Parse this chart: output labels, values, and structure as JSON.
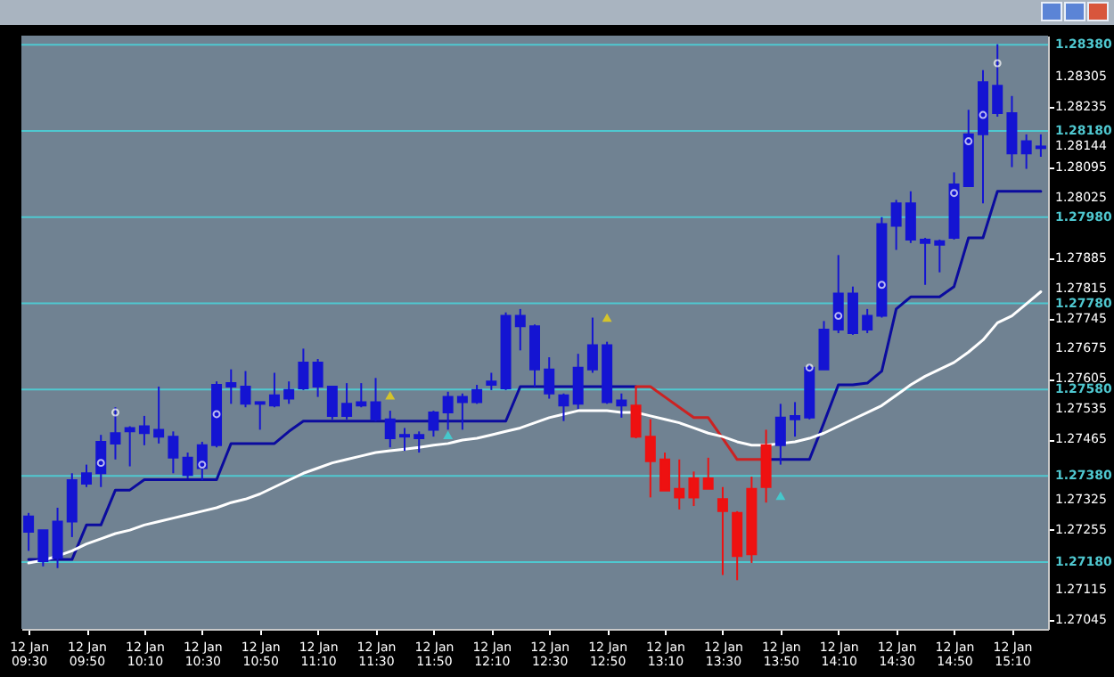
{
  "chart_data": {
    "type": "candlestick",
    "categories": [
      "12 Jan 09:30",
      null,
      null,
      null,
      "12 Jan 09:50",
      null,
      null,
      null,
      "12 Jan 10:10",
      null,
      null,
      null,
      "12 Jan 10:30",
      null,
      null,
      null,
      "12 Jan 10:50",
      null,
      null,
      null,
      "12 Jan 11:10",
      null,
      null,
      null,
      "12 Jan 11:30",
      null,
      null,
      null,
      "12 Jan 11:50",
      null,
      null,
      null,
      "12 Jan 12:10",
      null,
      null,
      null,
      "12 Jan 12:30",
      null,
      null,
      null,
      "12 Jan 12:50",
      null,
      null,
      null,
      "12 Jan 13:10",
      null,
      null,
      null,
      "12 Jan 13:30",
      null,
      null,
      null,
      "12 Jan 13:50",
      null,
      null,
      null,
      "12 Jan 14:10",
      null,
      null,
      null,
      "12 Jan 14:30",
      null,
      null,
      null,
      "12 Jan 14:50",
      null,
      null,
      null,
      "12 Jan 15:10",
      null,
      null
    ],
    "ohlc": [
      [
        1.2725,
        1.27294,
        1.27206,
        1.27286
      ],
      [
        1.27182,
        1.27254,
        1.2717,
        1.27254
      ],
      [
        1.2719,
        1.27306,
        1.27166,
        1.27274
      ],
      [
        1.27274,
        1.27386,
        1.27238,
        1.2737
      ],
      [
        1.27362,
        1.27406,
        1.27354,
        1.27386
      ],
      [
        1.27386,
        1.27475,
        1.27354,
        1.27459
      ],
      [
        1.27455,
        1.27539,
        1.27418,
        1.27479
      ],
      [
        1.27483,
        1.27495,
        1.27402,
        1.27491
      ],
      [
        1.27479,
        1.27519,
        1.27451,
        1.27495
      ],
      [
        1.27471,
        1.27587,
        1.27455,
        1.27487
      ],
      [
        1.27422,
        1.27483,
        1.27386,
        1.27471
      ],
      [
        1.27382,
        1.27434,
        1.27374,
        1.27422
      ],
      [
        1.27398,
        1.27459,
        1.2737,
        1.27451
      ],
      [
        1.27451,
        1.27599,
        1.27446,
        1.27591
      ],
      [
        1.27587,
        1.27627,
        1.27547,
        1.27595
      ],
      [
        1.27547,
        1.27623,
        1.27539,
        1.27587
      ],
      [
        1.27547,
        1.27551,
        1.27487,
        1.27551
      ],
      [
        1.27543,
        1.27619,
        1.27539,
        1.27567
      ],
      [
        1.27559,
        1.27599,
        1.27547,
        1.27579
      ],
      [
        1.27583,
        1.27675,
        1.27579,
        1.27643
      ],
      [
        1.27587,
        1.27651,
        1.27563,
        1.27643
      ],
      [
        1.27519,
        1.27587,
        1.27511,
        1.27587
      ],
      [
        1.27519,
        1.27595,
        1.27511,
        1.27547
      ],
      [
        1.27543,
        1.27595,
        1.27539,
        1.27551
      ],
      [
        1.27511,
        1.27607,
        1.27507,
        1.27551
      ],
      [
        1.27467,
        1.27531,
        1.27446,
        1.27511
      ],
      [
        1.27471,
        1.27491,
        1.27438,
        1.27475
      ],
      [
        1.27467,
        1.27483,
        1.27434,
        1.27475
      ],
      [
        1.27487,
        1.27531,
        1.27471,
        1.27527
      ],
      [
        1.27527,
        1.27575,
        1.27487,
        1.27563
      ],
      [
        1.27551,
        1.27571,
        1.27487,
        1.27563
      ],
      [
        1.27551,
        1.27591,
        1.27547,
        1.27579
      ],
      [
        1.27591,
        1.27619,
        1.27579,
        1.27599
      ],
      [
        1.27583,
        1.27759,
        1.27579,
        1.27751
      ],
      [
        1.27727,
        1.27767,
        1.27671,
        1.27751
      ],
      [
        1.27627,
        1.27731,
        1.27587,
        1.27727
      ],
      [
        1.27571,
        1.27655,
        1.27559,
        1.27627
      ],
      [
        1.27543,
        1.27571,
        1.27507,
        1.27567
      ],
      [
        1.27547,
        1.27663,
        1.27535,
        1.27631
      ],
      [
        1.27627,
        1.27747,
        1.27619,
        1.27683
      ],
      [
        1.27551,
        1.27691,
        1.27547,
        1.27683
      ],
      [
        1.27543,
        1.27571,
        1.27515,
        1.27555
      ],
      [
        1.27543,
        1.27587,
        1.27467,
        1.27471
      ],
      [
        1.27471,
        1.27511,
        1.2733,
        1.27414
      ],
      [
        1.27418,
        1.27434,
        1.27346,
        1.27346
      ],
      [
        1.2735,
        1.27418,
        1.27302,
        1.2733
      ],
      [
        1.27374,
        1.2739,
        1.2731,
        1.2733
      ],
      [
        1.27374,
        1.27422,
        1.2735,
        1.2735
      ],
      [
        1.27326,
        1.27354,
        1.2715,
        1.27298
      ],
      [
        1.27294,
        1.27298,
        1.27138,
        1.27194
      ],
      [
        1.2735,
        1.27378,
        1.27178,
        1.27198
      ],
      [
        1.27451,
        1.27487,
        1.27318,
        1.27354
      ],
      [
        1.27451,
        1.27547,
        1.27406,
        1.27515
      ],
      [
        1.27511,
        1.27551,
        1.27471,
        1.27519
      ],
      [
        1.27515,
        1.27639,
        1.27511,
        1.27631
      ],
      [
        1.27627,
        1.27739,
        1.27627,
        1.27719
      ],
      [
        1.27719,
        1.27892,
        1.27711,
        1.27803
      ],
      [
        1.27711,
        1.27819,
        1.27707,
        1.27803
      ],
      [
        1.27719,
        1.27767,
        1.27711,
        1.27751
      ],
      [
        1.27751,
        1.2798,
        1.27747,
        1.27964
      ],
      [
        1.2796,
        1.2802,
        1.27904,
        1.28012
      ],
      [
        1.27928,
        1.2804,
        1.2792,
        1.28012
      ],
      [
        1.2792,
        1.27932,
        1.27823,
        1.27928
      ],
      [
        1.27916,
        1.27928,
        1.27852,
        1.27924
      ],
      [
        1.27932,
        1.28084,
        1.27928,
        1.28056
      ],
      [
        1.28052,
        1.28229,
        1.28052,
        1.28172
      ],
      [
        1.28172,
        1.28321,
        1.28012,
        1.28293
      ],
      [
        1.28221,
        1.28381,
        1.28213,
        1.28285
      ],
      [
        1.28128,
        1.28261,
        1.28096,
        1.28221
      ],
      [
        1.28128,
        1.28172,
        1.28092,
        1.28156
      ],
      [
        1.2814,
        1.28172,
        1.2812,
        1.28144
      ]
    ],
    "colors": [
      "#1414d2",
      "#1414d2",
      "#1414d2",
      "#1414d2",
      "#1414d2",
      "#1414d2",
      "#1414d2",
      "#1414d2",
      "#1414d2",
      "#1414d2",
      "#1414d2",
      "#1414d2",
      "#1414d2",
      "#1414d2",
      "#1414d2",
      "#1414d2",
      "#1414d2",
      "#1414d2",
      "#1414d2",
      "#1414d2",
      "#1414d2",
      "#1414d2",
      "#1414d2",
      "#1414d2",
      "#1414d2",
      "#1414d2",
      "#1414d2",
      "#1414d2",
      "#1414d2",
      "#1414d2",
      "#1414d2",
      "#1414d2",
      "#1414d2",
      "#1414d2",
      "#1414d2",
      "#1414d2",
      "#1414d2",
      "#1414d2",
      "#1414d2",
      "#1414d2",
      "#1414d2",
      "#1414d2",
      "#ee1111",
      "#ee1111",
      "#ee1111",
      "#ee1111",
      "#ee1111",
      "#ee1111",
      "#ee1111",
      "#ee1111",
      "#ee1111",
      "#ee1111",
      "#1414d2",
      "#1414d2",
      "#1414d2",
      "#1414d2",
      "#1414d2",
      "#1414d2",
      "#1414d2",
      "#1414d2",
      "#1414d2",
      "#1414d2",
      "#1414d2",
      "#1414d2",
      "#1414d2",
      "#1414d2",
      "#1414d2",
      "#1414d2",
      "#1414d2",
      "#1414d2",
      "#1414d2"
    ],
    "series": [
      {
        "type": "line",
        "color": "#0b0b9e",
        "values": [
          1.27186,
          1.27186,
          1.27186,
          1.27186,
          1.27266,
          1.27266,
          1.27347,
          1.27347,
          1.27371,
          1.27371,
          1.27371,
          1.27371,
          1.27371,
          1.27371,
          1.27455,
          1.27455,
          1.27455,
          1.27455,
          1.27483,
          1.27507,
          1.27507,
          1.27507,
          1.27507,
          1.27507,
          1.27507,
          1.27507,
          1.27507,
          1.27507,
          1.27507,
          1.27507,
          1.27507,
          1.27507,
          1.27507,
          1.27507,
          1.27587,
          1.27587,
          1.27587,
          1.27587,
          1.27587,
          1.27587,
          1.27587,
          1.27587,
          1.27587,
          null,
          null,
          null,
          null,
          null,
          null,
          null,
          null,
          1.27418,
          1.27418,
          1.27418,
          1.27418,
          1.27503,
          1.27591,
          1.27591,
          1.27595,
          1.27623,
          1.27767,
          1.27795,
          1.27795,
          1.27795,
          1.27819,
          1.27932,
          1.27932,
          1.2804,
          1.2804,
          1.2804,
          1.2804
        ]
      },
      {
        "type": "line",
        "color": "#cc2222",
        "values": [
          null,
          null,
          null,
          null,
          null,
          null,
          null,
          null,
          null,
          null,
          null,
          null,
          null,
          null,
          null,
          null,
          null,
          null,
          null,
          null,
          null,
          null,
          null,
          null,
          null,
          null,
          null,
          null,
          null,
          null,
          null,
          null,
          null,
          null,
          null,
          null,
          null,
          null,
          null,
          null,
          null,
          null,
          1.27587,
          1.27587,
          1.27563,
          1.27539,
          1.27515,
          1.27515,
          1.27467,
          1.27418,
          1.27418,
          1.27418,
          null,
          null,
          null,
          null,
          null,
          null,
          null,
          null,
          null,
          null,
          null,
          null,
          null,
          null,
          null,
          null,
          null,
          null,
          null
        ]
      },
      {
        "type": "line",
        "color": "#ffffff",
        "values": [
          1.27178,
          1.27184,
          1.27194,
          1.27206,
          1.27222,
          1.27234,
          1.27246,
          1.27254,
          1.27266,
          1.27274,
          1.27282,
          1.2729,
          1.27298,
          1.27306,
          1.27318,
          1.27326,
          1.27338,
          1.27354,
          1.2737,
          1.27386,
          1.27398,
          1.2741,
          1.27418,
          1.27426,
          1.27434,
          1.27438,
          1.27442,
          1.27446,
          1.27451,
          1.27455,
          1.27463,
          1.27467,
          1.27475,
          1.27483,
          1.27491,
          1.27503,
          1.27515,
          1.27523,
          1.27531,
          1.27531,
          1.27531,
          1.27527,
          1.27527,
          1.27519,
          1.27511,
          1.27503,
          1.27491,
          1.27479,
          1.27471,
          1.27459,
          1.27451,
          1.27451,
          1.27455,
          1.27459,
          1.27467,
          1.27479,
          1.27495,
          1.27511,
          1.27527,
          1.27543,
          1.27567,
          1.27591,
          1.27611,
          1.27627,
          1.27643,
          1.27667,
          1.27695,
          1.27735,
          1.27751,
          1.27779,
          1.27807
        ]
      },
      {
        "type": "scatter",
        "color": "#ffe000",
        "marker": "triangle",
        "values": [
          null,
          null,
          null,
          null,
          null,
          null,
          null,
          null,
          null,
          null,
          null,
          null,
          null,
          null,
          null,
          null,
          null,
          null,
          null,
          null,
          null,
          null,
          null,
          null,
          null,
          1.27567,
          null,
          null,
          null,
          null,
          null,
          null,
          null,
          null,
          null,
          null,
          null,
          null,
          null,
          null,
          1.27747,
          null,
          null,
          null,
          null,
          null,
          null,
          null,
          null,
          null,
          null,
          null,
          null,
          null,
          null,
          null,
          null,
          null,
          null,
          null,
          null,
          null,
          null,
          null,
          null,
          null,
          null,
          null,
          null,
          null,
          null
        ]
      },
      {
        "type": "scatter",
        "color": "#33e6e6",
        "marker": "triangle",
        "values": [
          null,
          null,
          null,
          null,
          null,
          null,
          null,
          null,
          null,
          null,
          null,
          null,
          null,
          null,
          null,
          null,
          null,
          null,
          null,
          null,
          null,
          null,
          null,
          null,
          null,
          null,
          null,
          null,
          null,
          1.27475,
          null,
          null,
          null,
          null,
          null,
          null,
          null,
          null,
          null,
          null,
          null,
          null,
          null,
          null,
          null,
          null,
          null,
          null,
          null,
          null,
          null,
          null,
          1.27334,
          null,
          null,
          null,
          null,
          null,
          null,
          null,
          null,
          null,
          null,
          null,
          null,
          null,
          null,
          null,
          null,
          null,
          null
        ]
      },
      {
        "type": "scatter",
        "color": "#ffffff",
        "marker": "circle",
        "values": [
          null,
          null,
          null,
          null,
          null,
          1.2741,
          1.27527,
          null,
          null,
          null,
          null,
          null,
          1.27406,
          1.27523,
          null,
          null,
          null,
          null,
          null,
          null,
          null,
          null,
          null,
          null,
          null,
          null,
          null,
          null,
          null,
          null,
          null,
          null,
          null,
          null,
          null,
          null,
          null,
          null,
          null,
          null,
          null,
          null,
          null,
          null,
          null,
          null,
          null,
          null,
          null,
          null,
          null,
          null,
          null,
          null,
          1.27631,
          null,
          1.27751,
          null,
          null,
          1.27823,
          null,
          null,
          null,
          null,
          1.28036,
          1.28156,
          1.28217,
          1.28337,
          null,
          null,
          null
        ]
      }
    ],
    "ylim": [
      1.27025,
      1.28401
    ],
    "yticks": [
      1.28305,
      1.28235,
      1.28144,
      1.28095,
      1.28025,
      1.27885,
      1.27815,
      1.27745,
      1.27675,
      1.27605,
      1.27535,
      1.27465,
      1.27325,
      1.27255,
      1.27115,
      1.27045
    ],
    "ref_lines": [
      {
        "axis": "y",
        "value": 1.2838,
        "label": "1.28380",
        "color": "#4fc8d0"
      },
      {
        "axis": "y",
        "value": 1.2818,
        "label": "1.28180",
        "color": "#4fc8d0"
      },
      {
        "axis": "y",
        "value": 1.2798,
        "label": "1.27980",
        "color": "#4fc8d0"
      },
      {
        "axis": "y",
        "value": 1.2778,
        "label": "1.27780",
        "color": "#4fc8d0"
      },
      {
        "axis": "y",
        "value": 1.2758,
        "label": "1.27580",
        "color": "#4fc8d0"
      },
      {
        "axis": "y",
        "value": 1.2738,
        "label": "1.27380",
        "color": "#4fc8d0"
      },
      {
        "axis": "y",
        "value": 1.2718,
        "label": "1.27180",
        "color": "#4fc8d0"
      }
    ]
  }
}
